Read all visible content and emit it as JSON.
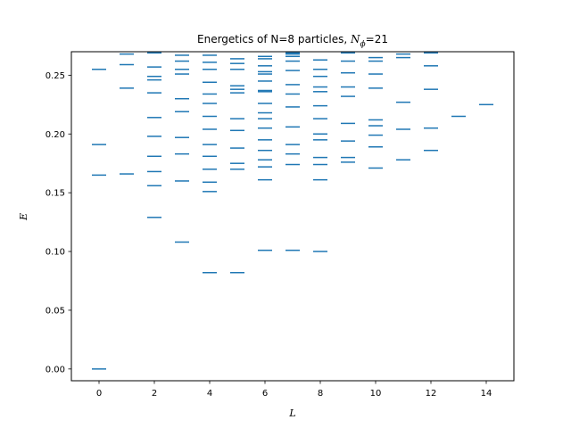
{
  "chart_data": {
    "type": "scatter",
    "marker": "horizontal-dash",
    "title": {
      "prefix": "Energetics of N=8 particles, ",
      "symbol_main": "N",
      "symbol_sub": "ϕ",
      "suffix": "=21"
    },
    "xlabel": "L",
    "ylabel": "E",
    "xlim": [
      -1,
      15
    ],
    "ylim": [
      -0.01,
      0.27
    ],
    "xticks": [
      0,
      2,
      4,
      6,
      8,
      10,
      12,
      14
    ],
    "yticks": [
      0.0,
      0.05,
      0.1,
      0.15,
      0.2,
      0.25
    ],
    "ytick_labels": [
      "0.00",
      "0.05",
      "0.10",
      "0.15",
      "0.20",
      "0.25"
    ],
    "color": "#1f77b4",
    "series": [
      {
        "L": 0,
        "E": [
          0.0,
          0.165,
          0.191,
          0.255
        ]
      },
      {
        "L": 1,
        "E": [
          0.166,
          0.239,
          0.259,
          0.268
        ]
      },
      {
        "L": 2,
        "E": [
          0.129,
          0.156,
          0.168,
          0.181,
          0.198,
          0.214,
          0.235,
          0.246,
          0.249,
          0.257,
          0.269
        ]
      },
      {
        "L": 3,
        "E": [
          0.108,
          0.16,
          0.183,
          0.197,
          0.219,
          0.23,
          0.251,
          0.255,
          0.262,
          0.267
        ]
      },
      {
        "L": 4,
        "E": [
          0.082,
          0.151,
          0.159,
          0.17,
          0.181,
          0.191,
          0.204,
          0.215,
          0.226,
          0.234,
          0.244,
          0.255,
          0.261,
          0.267
        ]
      },
      {
        "L": 5,
        "E": [
          0.082,
          0.17,
          0.175,
          0.188,
          0.203,
          0.213,
          0.235,
          0.238,
          0.241,
          0.255,
          0.26,
          0.264
        ]
      },
      {
        "L": 6,
        "E": [
          0.101,
          0.161,
          0.172,
          0.178,
          0.186,
          0.195,
          0.205,
          0.213,
          0.218,
          0.226,
          0.236,
          0.237,
          0.245,
          0.251,
          0.253,
          0.258,
          0.264,
          0.266
        ]
      },
      {
        "L": 7,
        "E": [
          0.101,
          0.174,
          0.183,
          0.191,
          0.206,
          0.223,
          0.234,
          0.242,
          0.254,
          0.262,
          0.266,
          0.268,
          0.269
        ]
      },
      {
        "L": 8,
        "E": [
          0.1,
          0.161,
          0.174,
          0.18,
          0.195,
          0.2,
          0.213,
          0.224,
          0.236,
          0.24,
          0.249,
          0.255,
          0.263
        ]
      },
      {
        "L": 9,
        "E": [
          0.176,
          0.18,
          0.194,
          0.209,
          0.232,
          0.24,
          0.252,
          0.262,
          0.269
        ]
      },
      {
        "L": 10,
        "E": [
          0.171,
          0.189,
          0.199,
          0.207,
          0.212,
          0.239,
          0.251,
          0.262,
          0.265
        ]
      },
      {
        "L": 11,
        "E": [
          0.178,
          0.204,
          0.227,
          0.265,
          0.268
        ]
      },
      {
        "L": 12,
        "E": [
          0.186,
          0.205,
          0.238,
          0.258,
          0.269
        ]
      },
      {
        "L": 13,
        "E": [
          0.215
        ]
      },
      {
        "L": 14,
        "E": [
          0.225
        ]
      }
    ]
  }
}
